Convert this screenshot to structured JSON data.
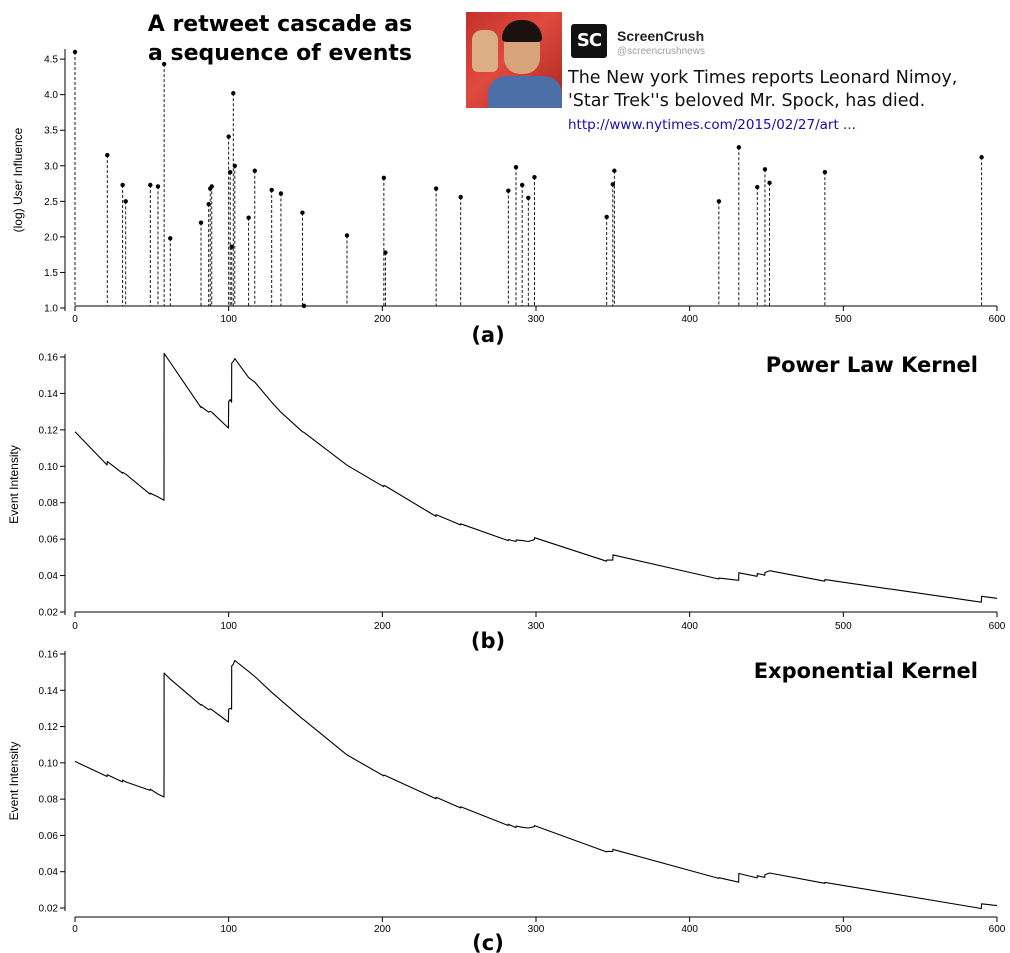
{
  "title": "A retweet cascade as a sequence of events",
  "title_lines": [
    "A retweet cascade as",
    "a sequence of events"
  ],
  "tweet": {
    "account": "ScreenCrush",
    "logo_text": "SC",
    "handle": "@screencrushnews",
    "text_line1": "The New york Times reports Leonard Nimoy,",
    "text_line2": "'Star Trek''s beloved Mr. Spock, has died.",
    "link": "http://www.nytimes.com/2015/02/27/art ..."
  },
  "chart_data": [
    {
      "panel_label": "(a)",
      "type": "scatter",
      "style": "stem",
      "ylabel": "(log) User Influence",
      "xlim": [
        0,
        600
      ],
      "ylim": [
        1.0,
        4.6
      ],
      "xticks": [
        0,
        100,
        200,
        300,
        400,
        500,
        600
      ],
      "yticks": [
        1.0,
        1.5,
        2.0,
        2.5,
        3.0,
        3.5,
        4.0,
        4.5
      ],
      "ytick_labels": [
        "1.0",
        "1.5",
        "2.0",
        "2.5",
        "3.0",
        "3.5",
        "4.0",
        "4.5"
      ],
      "x": [
        0,
        21,
        31,
        33,
        49,
        54,
        58,
        62,
        82,
        87,
        88,
        89,
        100,
        101,
        102,
        103,
        104,
        113,
        117,
        128,
        134,
        148,
        149,
        177,
        201,
        202,
        235,
        251,
        282,
        287,
        291,
        295,
        299,
        346,
        350,
        351,
        419,
        432,
        444,
        449,
        452,
        488,
        590
      ],
      "y": [
        4.6,
        3.15,
        2.73,
        2.5,
        2.73,
        2.71,
        4.43,
        1.98,
        2.2,
        2.46,
        2.68,
        2.71,
        3.41,
        2.91,
        1.86,
        4.02,
        3.0,
        2.27,
        2.93,
        2.66,
        2.61,
        2.34,
        1.03,
        2.02,
        2.83,
        1.78,
        2.68,
        2.56,
        2.65,
        2.98,
        2.73,
        2.55,
        2.84,
        2.28,
        2.74,
        2.93,
        2.5,
        3.26,
        2.7,
        2.95,
        2.76,
        2.91,
        3.12
      ]
    },
    {
      "panel_label": "(b)",
      "title": "Power Law Kernel",
      "type": "line",
      "ylabel": "Event Intensity",
      "xlim": [
        0,
        600
      ],
      "ylim": [
        0.02,
        0.16
      ],
      "xticks": [
        0,
        100,
        200,
        300,
        400,
        500,
        600
      ],
      "yticks": [
        0.02,
        0.04,
        0.06,
        0.08,
        0.1,
        0.12,
        0.14,
        0.16
      ],
      "ytick_labels": [
        "0.02",
        "0.04",
        "0.06",
        "0.08",
        "0.10",
        "0.12",
        "0.14",
        "0.16"
      ],
      "points": [
        [
          0,
          0.119
        ],
        [
          20.9,
          0.1007
        ],
        [
          21,
          0.1027
        ],
        [
          30.9,
          0.0962
        ],
        [
          31,
          0.0967
        ],
        [
          33,
          0.0957
        ],
        [
          48.9,
          0.0847
        ],
        [
          49,
          0.0852
        ],
        [
          54,
          0.0832
        ],
        [
          57.9,
          0.0813
        ],
        [
          58,
          0.162
        ],
        [
          62,
          0.157
        ],
        [
          82,
          0.1322
        ],
        [
          82.1,
          0.1327
        ],
        [
          87,
          0.1297
        ],
        [
          88,
          0.1302
        ],
        [
          89,
          0.1297
        ],
        [
          99.8,
          0.121
        ],
        [
          100,
          0.1356
        ],
        [
          101,
          0.1366
        ],
        [
          101.9,
          0.1352
        ],
        [
          102,
          0.1566
        ],
        [
          103,
          0.1576
        ],
        [
          104,
          0.1591
        ],
        [
          113,
          0.1487
        ],
        [
          117,
          0.1462
        ],
        [
          128,
          0.1352
        ],
        [
          134,
          0.1297
        ],
        [
          148,
          0.119
        ],
        [
          149,
          0.1186
        ],
        [
          177,
          0.1006
        ],
        [
          200.9,
          0.0888
        ],
        [
          201,
          0.0895
        ],
        [
          202,
          0.0892
        ],
        [
          234.9,
          0.0725
        ],
        [
          235,
          0.0735
        ],
        [
          250.9,
          0.0678
        ],
        [
          251,
          0.0684
        ],
        [
          281.9,
          0.0592
        ],
        [
          282,
          0.0598
        ],
        [
          287,
          0.0587
        ],
        [
          287.1,
          0.0596
        ],
        [
          291,
          0.0592
        ],
        [
          295,
          0.0587
        ],
        [
          298.9,
          0.0597
        ],
        [
          299,
          0.0608
        ],
        [
          345.9,
          0.0479
        ],
        [
          346,
          0.0485
        ],
        [
          350,
          0.0485
        ],
        [
          350.1,
          0.0514
        ],
        [
          351,
          0.0512
        ],
        [
          418.9,
          0.0381
        ],
        [
          419,
          0.0386
        ],
        [
          431.9,
          0.0374
        ],
        [
          432,
          0.0415
        ],
        [
          443.9,
          0.0396
        ],
        [
          444,
          0.0411
        ],
        [
          447,
          0.0406
        ],
        [
          448.9,
          0.0402
        ],
        [
          449,
          0.0417
        ],
        [
          452,
          0.0427
        ],
        [
          487.9,
          0.0369
        ],
        [
          488,
          0.0378
        ],
        [
          589.8,
          0.0254
        ],
        [
          590,
          0.0286
        ],
        [
          600,
          0.0275
        ]
      ]
    },
    {
      "panel_label": "(c)",
      "title": "Exponential Kernel",
      "type": "line",
      "ylabel": "Event Intensity",
      "xlim": [
        0,
        600
      ],
      "ylim": [
        0.02,
        0.16
      ],
      "xticks": [
        0,
        100,
        200,
        300,
        400,
        500,
        600
      ],
      "yticks": [
        0.02,
        0.04,
        0.06,
        0.08,
        0.1,
        0.12,
        0.14,
        0.16
      ],
      "ytick_labels": [
        "0.02",
        "0.04",
        "0.06",
        "0.08",
        "0.10",
        "0.12",
        "0.14",
        "0.16"
      ],
      "points": [
        [
          0,
          0.1008
        ],
        [
          20.9,
          0.0925
        ],
        [
          21,
          0.0935
        ],
        [
          30.9,
          0.0895
        ],
        [
          31,
          0.0905
        ],
        [
          33,
          0.0895
        ],
        [
          48.9,
          0.0848
        ],
        [
          49,
          0.0855
        ],
        [
          54,
          0.0828
        ],
        [
          57.9,
          0.0812
        ],
        [
          58,
          0.1495
        ],
        [
          62,
          0.1461
        ],
        [
          82,
          0.1318
        ],
        [
          82.1,
          0.1322
        ],
        [
          87,
          0.1293
        ],
        [
          88,
          0.1298
        ],
        [
          89,
          0.1293
        ],
        [
          99.8,
          0.1225
        ],
        [
          100,
          0.1296
        ],
        [
          101,
          0.1301
        ],
        [
          101.9,
          0.1296
        ],
        [
          102,
          0.1534
        ],
        [
          103,
          0.1544
        ],
        [
          104,
          0.1564
        ],
        [
          113,
          0.1504
        ],
        [
          117,
          0.1476
        ],
        [
          128,
          0.1389
        ],
        [
          134,
          0.1345
        ],
        [
          148,
          0.1243
        ],
        [
          149,
          0.1237
        ],
        [
          177,
          0.1044
        ],
        [
          200.9,
          0.0928
        ],
        [
          201,
          0.0933
        ],
        [
          202,
          0.093
        ],
        [
          234.9,
          0.0802
        ],
        [
          235,
          0.081
        ],
        [
          250.9,
          0.0752
        ],
        [
          251,
          0.0758
        ],
        [
          281.9,
          0.0655
        ],
        [
          282,
          0.0662
        ],
        [
          287,
          0.0643
        ],
        [
          287.1,
          0.0652
        ],
        [
          291,
          0.0645
        ],
        [
          295,
          0.0641
        ],
        [
          298.9,
          0.0648
        ],
        [
          299,
          0.0654
        ],
        [
          345.9,
          0.0509
        ],
        [
          346,
          0.0512
        ],
        [
          350,
          0.0512
        ],
        [
          350.1,
          0.0524
        ],
        [
          351,
          0.0521
        ],
        [
          418.9,
          0.0363
        ],
        [
          419,
          0.0367
        ],
        [
          431.9,
          0.0342
        ],
        [
          432,
          0.039
        ],
        [
          443.9,
          0.0366
        ],
        [
          444,
          0.0378
        ],
        [
          447,
          0.0372
        ],
        [
          448.9,
          0.0369
        ],
        [
          449,
          0.0383
        ],
        [
          452,
          0.0393
        ],
        [
          487.9,
          0.0336
        ],
        [
          488,
          0.0341
        ],
        [
          589.8,
          0.0197
        ],
        [
          590,
          0.0223
        ],
        [
          600,
          0.0213
        ]
      ]
    }
  ]
}
